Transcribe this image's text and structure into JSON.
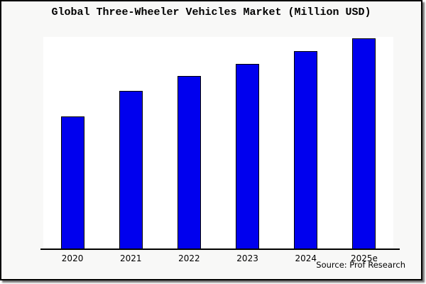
{
  "window": {
    "background": "#ffffff",
    "panel_background": "#f8f8f7",
    "panel_border_color": "#000000",
    "shadow_color": "#8a8a8a"
  },
  "footer": {
    "source": "Source: Prof Research"
  },
  "chart_data": {
    "type": "bar",
    "title": "Global Three-Wheeler Vehicles Market (Million USD)",
    "categories": [
      "2020",
      "2021",
      "2022",
      "2023",
      "2024",
      "2025e"
    ],
    "values": [
      63,
      75,
      82,
      88,
      94,
      100
    ],
    "value_note": "no y-axis scale shown in image; values are relative index with tallest bar (2025e) = 100",
    "xlabel": "",
    "ylabel": "",
    "y_axis_visible": false,
    "grid": false,
    "legend": false,
    "bar_color": "#0000ee",
    "bar_border_color": "#000000",
    "plot_background": "#ffffff"
  }
}
